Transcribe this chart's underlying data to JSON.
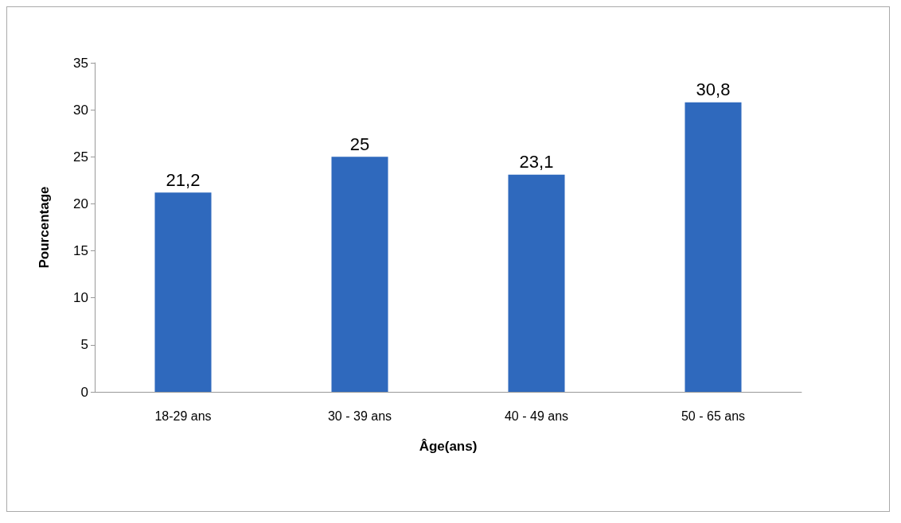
{
  "chart_data": {
    "type": "bar",
    "xlabel": "Âge(ans)",
    "ylabel": "Pourcentage",
    "categories": [
      "18-29 ans",
      "30 - 39 ans",
      "40 - 49 ans",
      "50 - 65 ans"
    ],
    "values": [
      21.2,
      25,
      23.1,
      30.8
    ],
    "value_labels": [
      "21,2",
      "25",
      "23,1",
      "30,8"
    ],
    "color": "#2f69bd",
    "ylim": [
      0,
      35
    ],
    "yticks": [
      0,
      5,
      10,
      15,
      20,
      25,
      30,
      35
    ],
    "grid": false
  }
}
